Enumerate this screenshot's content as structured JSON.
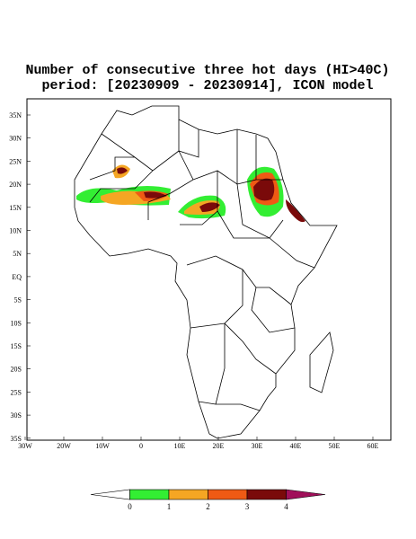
{
  "title": "Number of consecutive three hot days (HI>40C)",
  "subtitle": "period: [20230909 - 20230914], ICON model",
  "lat_labels": [
    "35N",
    "30N",
    "25N",
    "20N",
    "15N",
    "10N",
    "5N",
    "EQ",
    "5S",
    "10S",
    "15S",
    "20S",
    "25S",
    "30S",
    "35S"
  ],
  "lon_labels": [
    "30W",
    "20W",
    "10W",
    "0",
    "10E",
    "20E",
    "30E",
    "40E",
    "50E",
    "60E"
  ],
  "colorbar": {
    "colors": [
      "#ffffff",
      "#33ee33",
      "#f5a623",
      "#ef5a14",
      "#7a0a0a",
      "#a0105a"
    ],
    "labels": [
      "0",
      "1",
      "2",
      "3",
      "4"
    ]
  }
}
